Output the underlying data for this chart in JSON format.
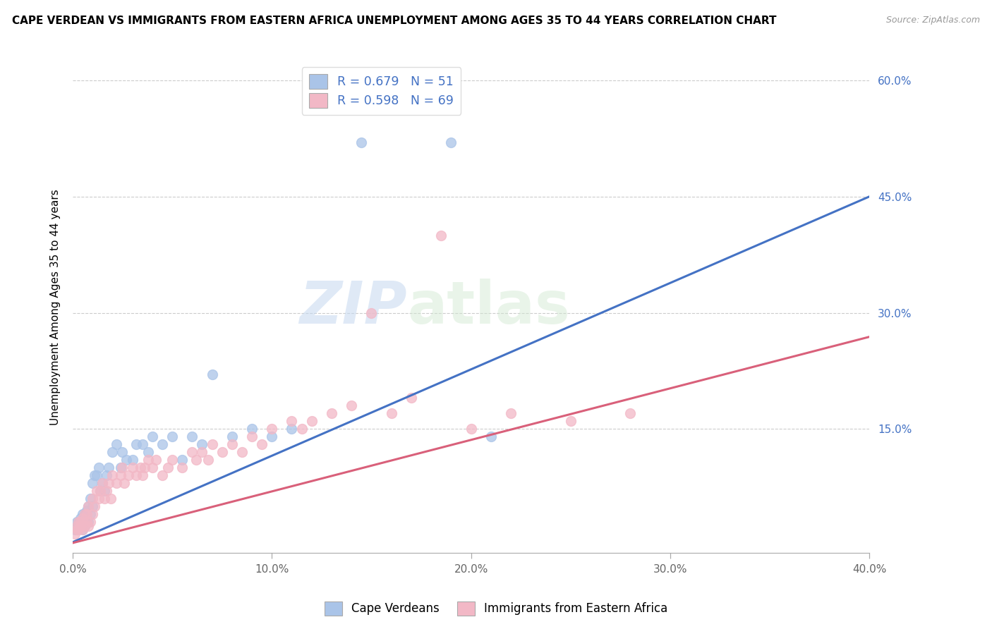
{
  "title": "CAPE VERDEAN VS IMMIGRANTS FROM EASTERN AFRICA UNEMPLOYMENT AMONG AGES 35 TO 44 YEARS CORRELATION CHART",
  "source": "Source: ZipAtlas.com",
  "ylabel": "Unemployment Among Ages 35 to 44 years",
  "xmin": 0.0,
  "xmax": 0.4,
  "ymin": -0.01,
  "ymax": 0.625,
  "xticks": [
    0.0,
    0.1,
    0.2,
    0.3,
    0.4
  ],
  "xtick_labels": [
    "0.0%",
    "10.0%",
    "20.0%",
    "30.0%",
    "40.0%"
  ],
  "ytick_positions": [
    0.15,
    0.3,
    0.45,
    0.6
  ],
  "ytick_labels": [
    "15.0%",
    "30.0%",
    "45.0%",
    "60.0%"
  ],
  "blue_R": 0.679,
  "blue_N": 51,
  "pink_R": 0.598,
  "pink_N": 69,
  "blue_color": "#aac4e8",
  "pink_color": "#f2b8c6",
  "blue_line_color": "#4472c4",
  "pink_line_color": "#d9607a",
  "legend_label_blue": "Cape Verdeans",
  "legend_label_pink": "Immigrants from Eastern Africa",
  "watermark_zip": "ZIP",
  "watermark_atlas": "atlas",
  "blue_trend_intercept": 0.004,
  "blue_trend_slope": 1.115,
  "pink_trend_intercept": 0.003,
  "pink_trend_slope": 0.665,
  "blue_scatter_x": [
    0.001,
    0.002,
    0.002,
    0.003,
    0.003,
    0.004,
    0.004,
    0.005,
    0.005,
    0.005,
    0.006,
    0.006,
    0.007,
    0.007,
    0.008,
    0.008,
    0.009,
    0.009,
    0.01,
    0.01,
    0.011,
    0.012,
    0.013,
    0.014,
    0.015,
    0.016,
    0.017,
    0.018,
    0.02,
    0.022,
    0.024,
    0.025,
    0.027,
    0.03,
    0.032,
    0.035,
    0.038,
    0.04,
    0.045,
    0.05,
    0.055,
    0.06,
    0.065,
    0.07,
    0.08,
    0.09,
    0.1,
    0.11,
    0.145,
    0.19,
    0.21
  ],
  "blue_scatter_y": [
    0.02,
    0.03,
    0.02,
    0.025,
    0.03,
    0.025,
    0.035,
    0.02,
    0.03,
    0.04,
    0.025,
    0.04,
    0.035,
    0.045,
    0.03,
    0.05,
    0.04,
    0.06,
    0.05,
    0.08,
    0.09,
    0.09,
    0.1,
    0.07,
    0.08,
    0.07,
    0.09,
    0.1,
    0.12,
    0.13,
    0.1,
    0.12,
    0.11,
    0.11,
    0.13,
    0.13,
    0.12,
    0.14,
    0.13,
    0.14,
    0.11,
    0.14,
    0.13,
    0.22,
    0.14,
    0.15,
    0.14,
    0.15,
    0.52,
    0.52,
    0.14
  ],
  "pink_scatter_x": [
    0.001,
    0.002,
    0.002,
    0.003,
    0.003,
    0.004,
    0.004,
    0.005,
    0.005,
    0.006,
    0.006,
    0.007,
    0.007,
    0.008,
    0.008,
    0.009,
    0.01,
    0.01,
    0.011,
    0.012,
    0.013,
    0.014,
    0.015,
    0.016,
    0.017,
    0.018,
    0.019,
    0.02,
    0.022,
    0.024,
    0.025,
    0.026,
    0.028,
    0.03,
    0.032,
    0.034,
    0.035,
    0.036,
    0.038,
    0.04,
    0.042,
    0.045,
    0.048,
    0.05,
    0.055,
    0.06,
    0.062,
    0.065,
    0.068,
    0.07,
    0.075,
    0.08,
    0.085,
    0.09,
    0.095,
    0.1,
    0.11,
    0.115,
    0.12,
    0.13,
    0.14,
    0.15,
    0.16,
    0.17,
    0.185,
    0.2,
    0.22,
    0.25,
    0.28
  ],
  "pink_scatter_y": [
    0.015,
    0.02,
    0.025,
    0.02,
    0.03,
    0.025,
    0.03,
    0.02,
    0.035,
    0.025,
    0.04,
    0.03,
    0.04,
    0.025,
    0.05,
    0.03,
    0.04,
    0.06,
    0.05,
    0.07,
    0.06,
    0.07,
    0.08,
    0.06,
    0.07,
    0.08,
    0.06,
    0.09,
    0.08,
    0.09,
    0.1,
    0.08,
    0.09,
    0.1,
    0.09,
    0.1,
    0.09,
    0.1,
    0.11,
    0.1,
    0.11,
    0.09,
    0.1,
    0.11,
    0.1,
    0.12,
    0.11,
    0.12,
    0.11,
    0.13,
    0.12,
    0.13,
    0.12,
    0.14,
    0.13,
    0.15,
    0.16,
    0.15,
    0.16,
    0.17,
    0.18,
    0.3,
    0.17,
    0.19,
    0.4,
    0.15,
    0.17,
    0.16,
    0.17
  ]
}
